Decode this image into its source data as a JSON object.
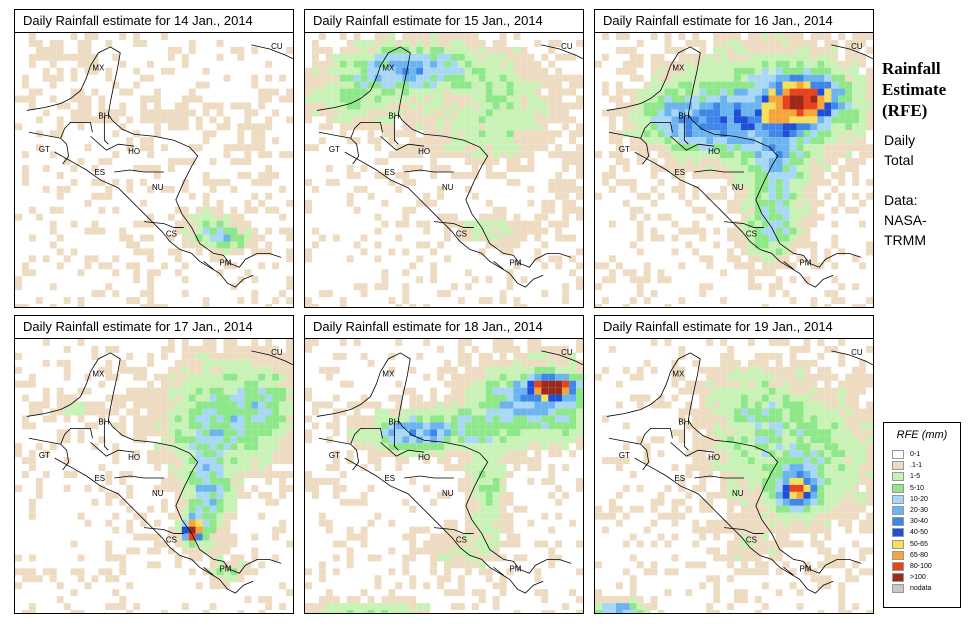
{
  "panels": [
    {
      "title": "Daily Rainfall estimate for  14 Jan., 2014"
    },
    {
      "title": "Daily Rainfall estimate for  15 Jan., 2014"
    },
    {
      "title": "Daily Rainfall estimate for  16 Jan., 2014"
    },
    {
      "title": "Daily Rainfall estimate for  17 Jan., 2014"
    },
    {
      "title": "Daily Rainfall estimate for  18 Jan., 2014"
    },
    {
      "title": "Daily Rainfall estimate for  19 Jan., 2014"
    }
  ],
  "country_labels": [
    "MX",
    "BH",
    "GT",
    "HO",
    "ES",
    "NU",
    "CS",
    "PM",
    "CU"
  ],
  "sidebar": {
    "heading": [
      "Rainfall",
      "Estimate",
      "(RFE)"
    ],
    "period": [
      "Daily",
      "Total"
    ],
    "source": [
      "Data:",
      "NASA-",
      "TRMM"
    ]
  },
  "legend": {
    "title": "RFE (mm)",
    "items": [
      {
        "label": "0-1",
        "color": "#ffffff"
      },
      {
        "label": ".1-1",
        "color": "#eedcc2"
      },
      {
        "label": "1-5",
        "color": "#c9f2b6"
      },
      {
        "label": "5-10",
        "color": "#8ee88a"
      },
      {
        "label": "10-20",
        "color": "#a8d8f5"
      },
      {
        "label": "20-30",
        "color": "#6cb4f0"
      },
      {
        "label": "30-40",
        "color": "#3e86e8"
      },
      {
        "label": "40-50",
        "color": "#1e4fd6"
      },
      {
        "label": "50-65",
        "color": "#f6df5c"
      },
      {
        "label": "65-80",
        "color": "#f5a53a"
      },
      {
        "label": "80-100",
        "color": "#e8421e"
      },
      {
        "label": ">100",
        "color": "#9c2a1c"
      },
      {
        "label": "nodata",
        "color": "#c8c8c8"
      }
    ]
  }
}
